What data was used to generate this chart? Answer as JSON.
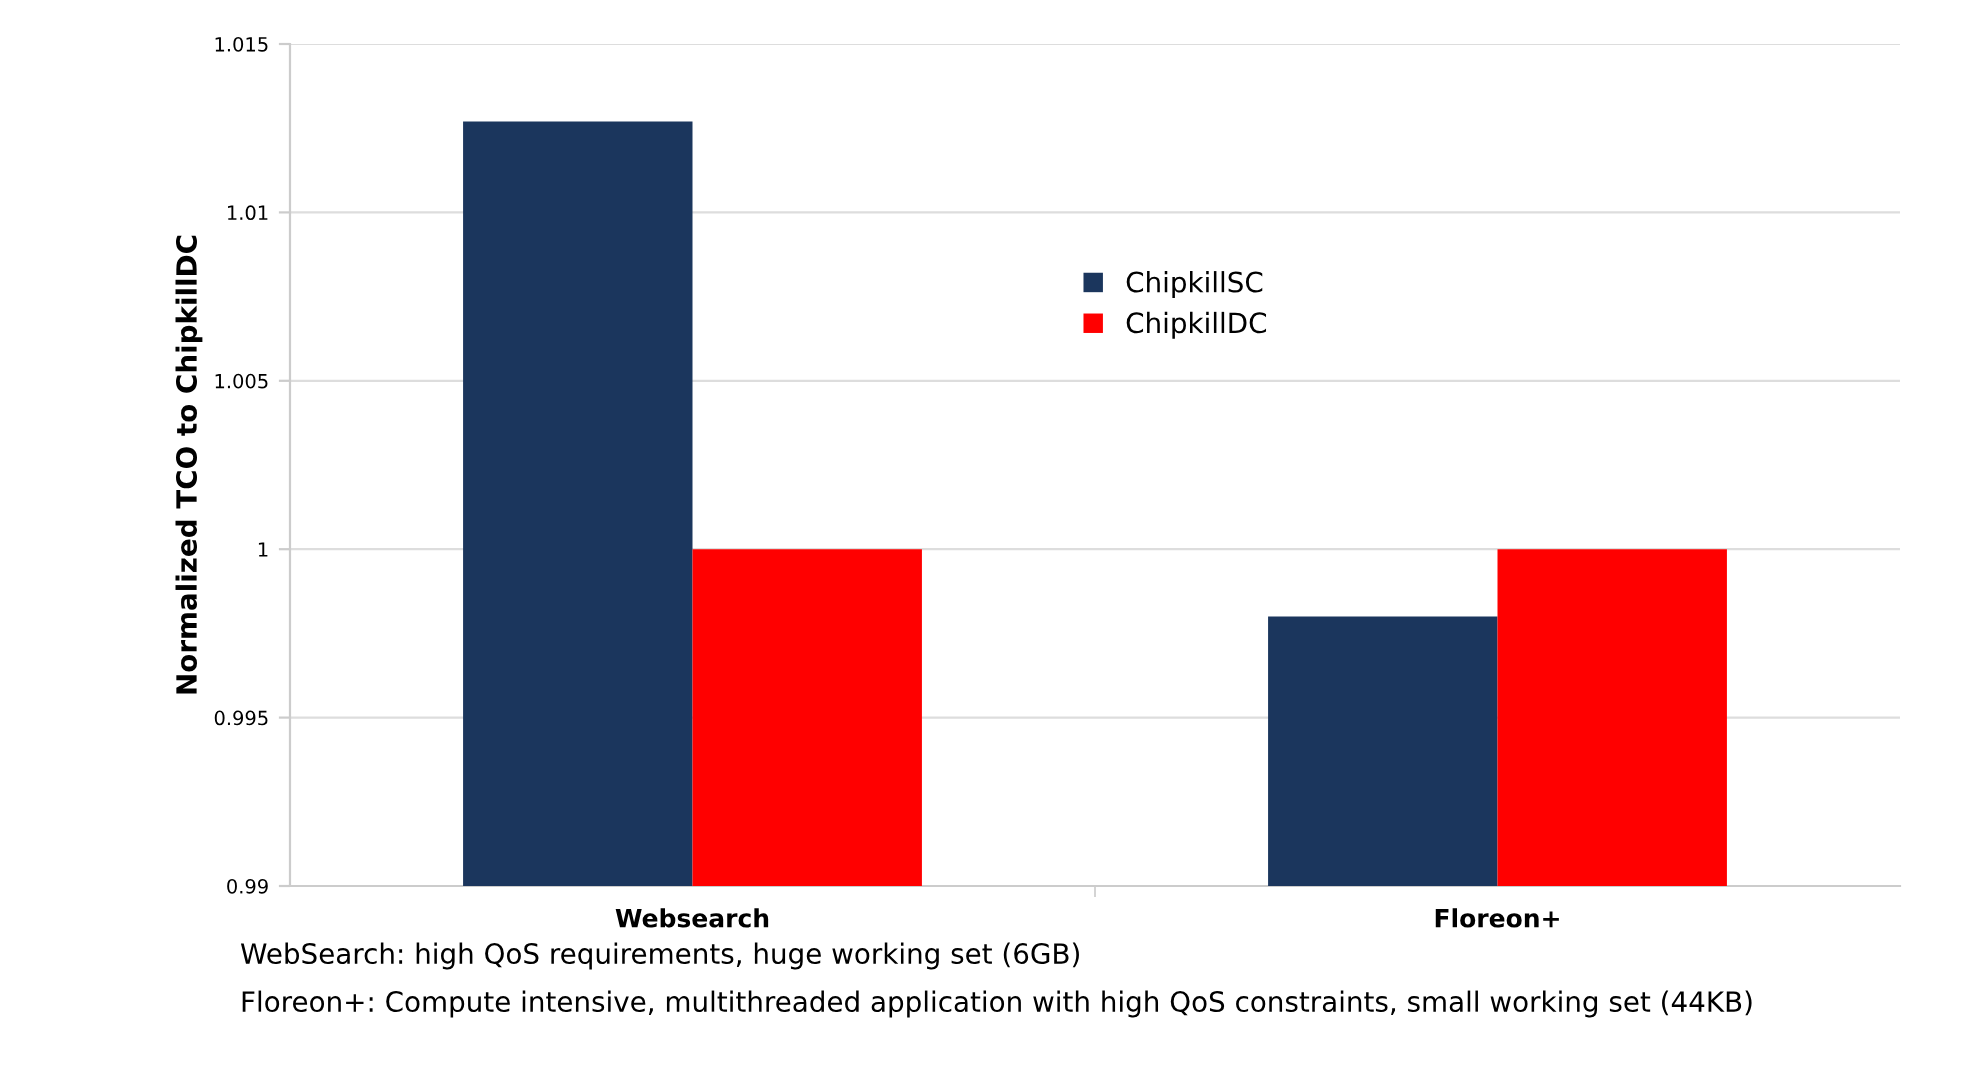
{
  "chart_data": {
    "type": "bar",
    "ylabel": "Normalized TCO to ChipkillDC",
    "categories": [
      "Websearch",
      "Floreon+"
    ],
    "series": [
      {
        "name": "ChipkillSC",
        "color": "#1b365d",
        "values": [
          1.0127,
          0.998
        ]
      },
      {
        "name": "ChipkillDC",
        "color": "#ff0000",
        "values": [
          1,
          1
        ]
      }
    ],
    "ylim": [
      0.99,
      1.015
    ],
    "yticks": [
      0.99,
      0.995,
      1,
      1.005,
      1.01,
      1.015
    ],
    "grid": "y",
    "legend": "top",
    "annotations": [
      "WebSearch: high QoS requirements, huge working set (6GB)",
      "Floreon+: Compute intensive, multithreaded application with high QoS constraints, small working set (44KB)"
    ]
  }
}
